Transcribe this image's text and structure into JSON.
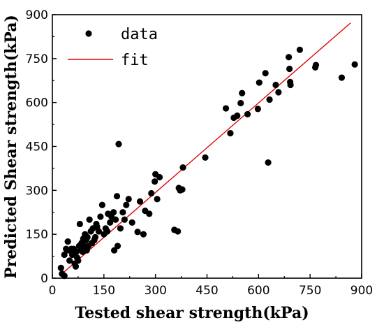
{
  "chart_data": {
    "type": "scatter",
    "xlabel": "Tested shear strength(kPa)",
    "ylabel": "Predicted Shear strength(kPa)",
    "xlim": [
      0,
      900
    ],
    "ylim": [
      0,
      900
    ],
    "xticks": [
      "0",
      "150",
      "300",
      "450",
      "600",
      "750",
      "900"
    ],
    "yticks": [
      "0",
      "150",
      "300",
      "450",
      "600",
      "750",
      "900"
    ],
    "grid": false,
    "legend_position": "top-left",
    "colors": {
      "data": "#000000",
      "fit": "#e00000"
    },
    "series": [
      {
        "name": "data",
        "kind": "scatter",
        "points": [
          [
            25,
            35
          ],
          [
            28,
            15
          ],
          [
            35,
            8
          ],
          [
            35,
            80
          ],
          [
            40,
            100
          ],
          [
            45,
            125
          ],
          [
            48,
            95
          ],
          [
            50,
            60
          ],
          [
            55,
            100
          ],
          [
            58,
            80
          ],
          [
            62,
            100
          ],
          [
            65,
            50
          ],
          [
            68,
            40
          ],
          [
            70,
            90
          ],
          [
            72,
            70
          ],
          [
            75,
            60
          ],
          [
            78,
            110
          ],
          [
            80,
            185
          ],
          [
            82,
            100
          ],
          [
            85,
            120
          ],
          [
            88,
            90
          ],
          [
            90,
            135
          ],
          [
            92,
            110
          ],
          [
            95,
            150
          ],
          [
            98,
            130
          ],
          [
            100,
            95
          ],
          [
            102,
            140
          ],
          [
            105,
            110
          ],
          [
            108,
            200
          ],
          [
            112,
            160
          ],
          [
            115,
            120
          ],
          [
            118,
            170
          ],
          [
            122,
            130
          ],
          [
            125,
            140
          ],
          [
            128,
            185
          ],
          [
            130,
            175
          ],
          [
            135,
            160
          ],
          [
            140,
            210
          ],
          [
            145,
            250
          ],
          [
            150,
            150
          ],
          [
            155,
            170
          ],
          [
            160,
            160
          ],
          [
            162,
            220
          ],
          [
            168,
            190
          ],
          [
            172,
            210
          ],
          [
            178,
            225
          ],
          [
            180,
            95
          ],
          [
            184,
            200
          ],
          [
            188,
            280
          ],
          [
            190,
            110
          ],
          [
            193,
            458
          ],
          [
            198,
            170
          ],
          [
            205,
            225
          ],
          [
            210,
            200
          ],
          [
            215,
            250
          ],
          [
            222,
            270
          ],
          [
            232,
            190
          ],
          [
            248,
            158
          ],
          [
            255,
            262
          ],
          [
            265,
            150
          ],
          [
            270,
            230
          ],
          [
            282,
            220
          ],
          [
            288,
            290
          ],
          [
            298,
            330
          ],
          [
            300,
            355
          ],
          [
            305,
            270
          ],
          [
            312,
            345
          ],
          [
            355,
            165
          ],
          [
            365,
            160
          ],
          [
            368,
            308
          ],
          [
            372,
            300
          ],
          [
            378,
            303
          ],
          [
            380,
            378
          ],
          [
            445,
            412
          ],
          [
            505,
            580
          ],
          [
            518,
            495
          ],
          [
            528,
            548
          ],
          [
            538,
            555
          ],
          [
            548,
            598
          ],
          [
            552,
            632
          ],
          [
            568,
            560
          ],
          [
            598,
            578
          ],
          [
            602,
            668
          ],
          [
            620,
            700
          ],
          [
            628,
            395
          ],
          [
            632,
            610
          ],
          [
            650,
            660
          ],
          [
            658,
            635
          ],
          [
            688,
            755
          ],
          [
            690,
            715
          ],
          [
            692,
            670
          ],
          [
            693,
            660
          ],
          [
            720,
            780
          ],
          [
            765,
            720
          ],
          [
            767,
            728
          ],
          [
            842,
            685
          ],
          [
            880,
            730
          ]
        ]
      },
      {
        "name": "fit",
        "kind": "line",
        "points": [
          [
            25,
            12
          ],
          [
            868,
            872
          ]
        ]
      }
    ]
  }
}
